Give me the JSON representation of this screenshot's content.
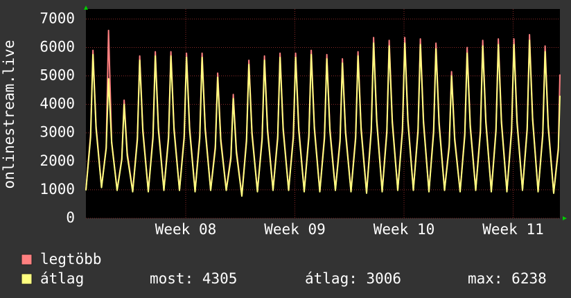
{
  "chart_data": {
    "type": "line",
    "y_label": "onlinestream.live",
    "x": [
      0,
      0.3,
      0.45,
      0.65,
      1,
      1.3,
      1.45,
      1.65,
      2,
      2.3,
      2.45,
      2.65,
      3,
      3.3,
      3.45,
      3.65,
      4,
      4.3,
      4.45,
      4.65,
      5,
      5.3,
      5.45,
      5.65,
      6,
      6.3,
      6.45,
      6.65,
      7,
      7.3,
      7.45,
      7.65,
      8,
      8.3,
      8.45,
      8.65,
      9,
      9.3,
      9.45,
      9.65,
      10,
      10.3,
      10.45,
      10.65,
      11,
      11.3,
      11.45,
      11.65,
      12,
      12.3,
      12.45,
      12.65,
      13,
      13.3,
      13.45,
      13.65,
      14,
      14.3,
      14.45,
      14.65,
      15,
      15.3,
      15.45,
      15.65,
      16,
      16.3,
      16.45,
      16.65,
      17,
      17.3,
      17.45,
      17.65,
      18,
      18.3,
      18.45,
      18.65,
      19,
      19.3,
      19.45,
      19.65,
      20,
      20.3,
      20.45,
      20.65,
      21,
      21.3,
      21.45,
      21.65,
      22,
      22.3,
      22.45,
      22.65,
      23,
      23.3,
      23.45,
      23.65,
      24,
      24.3,
      24.45,
      24.65,
      25,
      25.3,
      25.45,
      25.65,
      26,
      26.3,
      26.45,
      26.65,
      27,
      27.3,
      27.45,
      27.65,
      28,
      28.3,
      28.45,
      28.65,
      29,
      29.3,
      29.45,
      29.65,
      30,
      30.3,
      30.4
    ],
    "series": [
      {
        "name": "legtöbb",
        "color": "#ff8080",
        "values": [
          1000,
          2950,
          5900,
          3250,
          1100,
          2500,
          6600,
          2700,
          1000,
          2100,
          4150,
          2300,
          950,
          2850,
          5700,
          3150,
          950,
          2900,
          5850,
          3200,
          1000,
          2900,
          5850,
          3200,
          1000,
          2900,
          5800,
          3200,
          950,
          2900,
          5800,
          3200,
          1000,
          2550,
          5100,
          2800,
          1000,
          2200,
          4350,
          2400,
          800,
          2800,
          5550,
          3050,
          950,
          2850,
          5700,
          3150,
          1000,
          2900,
          5800,
          3200,
          1000,
          2900,
          5800,
          3200,
          950,
          2950,
          5900,
          3250,
          950,
          2900,
          5750,
          3150,
          1000,
          2800,
          5600,
          3100,
          950,
          2900,
          5850,
          3200,
          900,
          3150,
          6350,
          3500,
          950,
          3100,
          6250,
          3450,
          1000,
          3150,
          6350,
          3500,
          1000,
          3150,
          6300,
          3450,
          950,
          3100,
          6150,
          3400,
          1000,
          2600,
          5150,
          2850,
          950,
          3000,
          6000,
          3300,
          1000,
          3100,
          6250,
          3450,
          950,
          3150,
          6300,
          3450,
          950,
          3150,
          6300,
          3450,
          1000,
          3200,
          6450,
          3550,
          950,
          3000,
          6050,
          3300,
          900,
          2500,
          5050
        ]
      },
      {
        "name": "átlag",
        "color": "#ffff80",
        "values": [
          980,
          2850,
          5750,
          3150,
          1080,
          2450,
          4900,
          2650,
          980,
          2050,
          4000,
          2200,
          930,
          2750,
          5550,
          3050,
          930,
          2800,
          5700,
          3100,
          980,
          2800,
          5700,
          3100,
          980,
          2800,
          5650,
          3100,
          930,
          2800,
          5650,
          3100,
          980,
          2450,
          4950,
          2700,
          980,
          2100,
          4200,
          2300,
          780,
          2700,
          5400,
          2950,
          930,
          2750,
          5550,
          3050,
          980,
          2800,
          5650,
          3100,
          980,
          2800,
          5650,
          3100,
          930,
          2850,
          5750,
          3150,
          930,
          2800,
          5600,
          3050,
          980,
          2700,
          5450,
          3000,
          930,
          2800,
          5700,
          3100,
          880,
          3050,
          6150,
          3400,
          930,
          3000,
          6050,
          3350,
          980,
          3050,
          6150,
          3400,
          980,
          3050,
          6100,
          3350,
          930,
          3000,
          5950,
          3300,
          980,
          2500,
          5000,
          2750,
          930,
          2900,
          5800,
          3200,
          980,
          3000,
          6050,
          3350,
          930,
          3050,
          6100,
          3350,
          930,
          3050,
          6100,
          3350,
          980,
          3100,
          6250,
          3450,
          930,
          2900,
          5850,
          3200,
          880,
          2400,
          4305
        ]
      }
    ],
    "xlim": [
      0,
      30.4
    ],
    "xticks": [
      {
        "value": 6.4,
        "label": "Week 08"
      },
      {
        "value": 13.4,
        "label": "Week 09"
      },
      {
        "value": 20.4,
        "label": "Week 10"
      },
      {
        "value": 27.4,
        "label": "Week 11"
      }
    ],
    "ylim": [
      0,
      7350
    ],
    "yticks": [
      0,
      1000,
      2000,
      3000,
      4000,
      5000,
      6000,
      7000
    ],
    "grid": true,
    "stats": [
      {
        "label": "most:",
        "value": 4305
      },
      {
        "label": "átlag:",
        "value": 3006
      },
      {
        "label": "max:",
        "value": 6238
      }
    ]
  }
}
